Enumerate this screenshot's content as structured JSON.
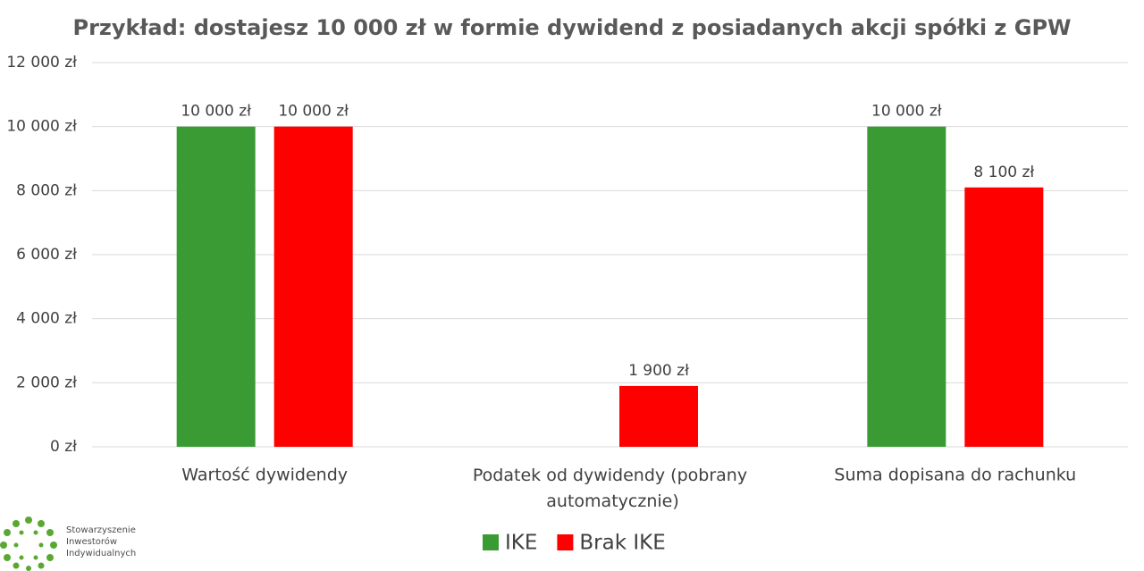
{
  "chart_data": {
    "type": "bar",
    "title": "Przykład: dostajesz 10 000 zł w formie dywidend z posiadanych akcji spółki z GPW",
    "categories": [
      "Wartość dywidendy",
      "Podatek od dywidendy (pobrany automatycznie)",
      "Suma dopisana do rachunku"
    ],
    "series": [
      {
        "name": "IKE",
        "color": "#3a9b35",
        "values": [
          10000,
          null,
          10000
        ],
        "value_labels": [
          "10 000 zł",
          null,
          "10 000 zł"
        ]
      },
      {
        "name": "Brak IKE",
        "color": "#ff0000",
        "values": [
          10000,
          1900,
          8100
        ],
        "value_labels": [
          "10 000 zł",
          "1 900 zł",
          "8 100 zł"
        ]
      }
    ],
    "ylim": [
      0,
      12000
    ],
    "yticks": [
      {
        "value": 0,
        "label": "0 zł"
      },
      {
        "value": 2000,
        "label": "2 000 zł"
      },
      {
        "value": 4000,
        "label": "4 000 zł"
      },
      {
        "value": 6000,
        "label": "6 000 zł"
      },
      {
        "value": 8000,
        "label": "8 000 zł"
      },
      {
        "value": 10000,
        "label": "10 000 zł"
      },
      {
        "value": 12000,
        "label": "12 000 zł"
      }
    ],
    "grid": true,
    "legend": "bottom"
  },
  "logo": {
    "lines": [
      "Stowarzyszenie",
      "Inwestorów",
      "Indywidualnych"
    ]
  }
}
